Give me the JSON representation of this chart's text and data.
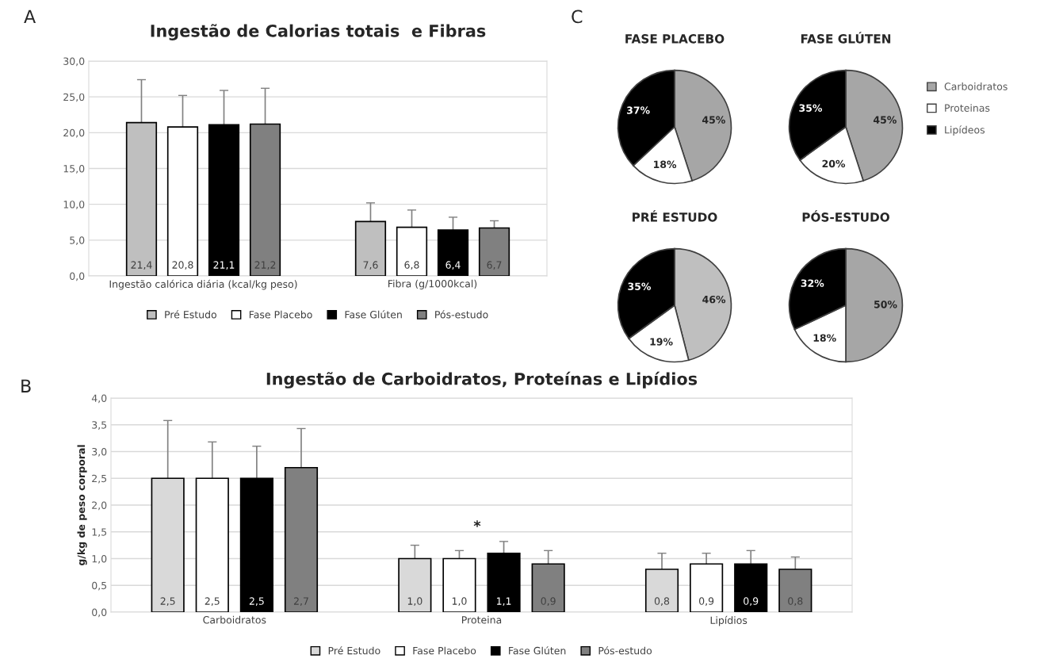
{
  "chart_data": [
    {
      "type": "bar",
      "title": "Ingestão de Calorias totais  e Fibras",
      "annotations": [
        "A"
      ],
      "categories": [
        "Ingestão calórica diária (kcal/kg peso)",
        "Fibra (g/1000kcal)"
      ],
      "series": [
        {
          "name": "Pré Estudo",
          "color": "#bfbfbf",
          "values": [
            21.4,
            7.6
          ],
          "errors": [
            6.0,
            2.6
          ],
          "value_labels": [
            "21,4",
            "7,6"
          ]
        },
        {
          "name": "Fase Placebo",
          "color": "#ffffff",
          "values": [
            20.8,
            6.8
          ],
          "errors": [
            4.4,
            2.4
          ],
          "value_labels": [
            "20,8",
            "6,8"
          ]
        },
        {
          "name": "Fase Glúten",
          "color": "#000000",
          "values": [
            21.1,
            6.4
          ],
          "errors": [
            4.8,
            1.8
          ],
          "value_labels": [
            "21,1",
            "6,4"
          ]
        },
        {
          "name": "Pós-estudo",
          "color": "#808080",
          "values": [
            21.2,
            6.7
          ],
          "errors": [
            5.0,
            1.0
          ],
          "value_labels": [
            "21,2",
            "6,7"
          ]
        }
      ],
      "ylim": [
        0,
        30
      ],
      "yticks": [
        {
          "value": 0,
          "label": "0,0"
        },
        {
          "value": 5,
          "label": "5,0"
        },
        {
          "value": 10,
          "label": "10,0"
        },
        {
          "value": 15,
          "label": "15,0"
        },
        {
          "value": 20,
          "label": "20,0"
        },
        {
          "value": 25,
          "label": "25,0"
        },
        {
          "value": 30,
          "label": "30,0"
        }
      ],
      "grid": "y",
      "legend": "bottom"
    },
    {
      "type": "pie",
      "title": "FASE PLACEBO",
      "annotations": [
        "C"
      ],
      "categories": [
        "Carboidratos",
        "Proteinas",
        "Lipídeos"
      ],
      "values": [
        45,
        18,
        37
      ],
      "colors": [
        "#a6a6a6",
        "#ffffff",
        "#000000"
      ],
      "value_labels": [
        "45%",
        "18%",
        "37%"
      ],
      "legend": "right"
    },
    {
      "type": "pie",
      "title": "FASE GLÚTEN",
      "categories": [
        null,
        null,
        null
      ],
      "values": [
        45,
        20,
        35
      ],
      "colors": [
        "#a6a6a6",
        "#ffffff",
        "#000000"
      ],
      "value_labels": [
        "45%",
        "20%",
        "35%"
      ]
    },
    {
      "type": "pie",
      "title": "PRÉ ESTUDO",
      "categories": [
        null,
        null,
        null
      ],
      "values": [
        46,
        19,
        35
      ],
      "colors": [
        "#bfbfbf",
        "#ffffff",
        "#000000"
      ],
      "value_labels": [
        "46%",
        "19%",
        "35%"
      ]
    },
    {
      "type": "pie",
      "title": "PÓS-ESTUDO",
      "categories": [
        null,
        null,
        null
      ],
      "values": [
        50,
        18,
        32
      ],
      "colors": [
        "#a6a6a6",
        "#ffffff",
        "#000000"
      ],
      "value_labels": [
        "50%",
        "18%",
        "32%"
      ]
    },
    {
      "type": "bar",
      "title": "Ingestão de Carboidratos, Proteínas e Lipídios",
      "ylabel": "g/kg de peso corporal",
      "annotations": [
        "B",
        "*"
      ],
      "categories": [
        "Carboidratos",
        "Proteina",
        "Lipídios"
      ],
      "series": [
        {
          "name": "Pré Estudo",
          "color": "#d9d9d9",
          "values": [
            2.5,
            1.0,
            0.8
          ],
          "errors": [
            1.08,
            0.25,
            0.3
          ],
          "value_labels": [
            "2,5",
            "1,0",
            "0,8"
          ]
        },
        {
          "name": "Fase Placebo",
          "color": "#ffffff",
          "values": [
            2.5,
            1.0,
            0.9
          ],
          "errors": [
            0.68,
            0.15,
            0.2
          ],
          "value_labels": [
            "2,5",
            "1,0",
            "0,9"
          ]
        },
        {
          "name": "Fase Glúten",
          "color": "#000000",
          "values": [
            2.5,
            1.1,
            0.9
          ],
          "errors": [
            0.6,
            0.22,
            0.25
          ],
          "value_labels": [
            "2,5",
            "1,1",
            "0,9"
          ]
        },
        {
          "name": "Pós-estudo",
          "color": "#808080",
          "values": [
            2.7,
            0.9,
            0.8
          ],
          "errors": [
            0.73,
            0.25,
            0.23
          ],
          "value_labels": [
            "2,7",
            "0,9",
            "0,8"
          ]
        }
      ],
      "ylim": [
        0,
        4
      ],
      "yticks": [
        {
          "value": 0,
          "label": "0,0"
        },
        {
          "value": 0.5,
          "label": "0,5"
        },
        {
          "value": 1,
          "label": "1,0"
        },
        {
          "value": 1.5,
          "label": "1,5"
        },
        {
          "value": 2,
          "label": "2,0"
        },
        {
          "value": 2.5,
          "label": "2,5"
        },
        {
          "value": 3,
          "label": "3,0"
        },
        {
          "value": 3.5,
          "label": "3,5"
        },
        {
          "value": 4,
          "label": "4,0"
        }
      ],
      "grid": "y",
      "legend": "bottom"
    }
  ]
}
